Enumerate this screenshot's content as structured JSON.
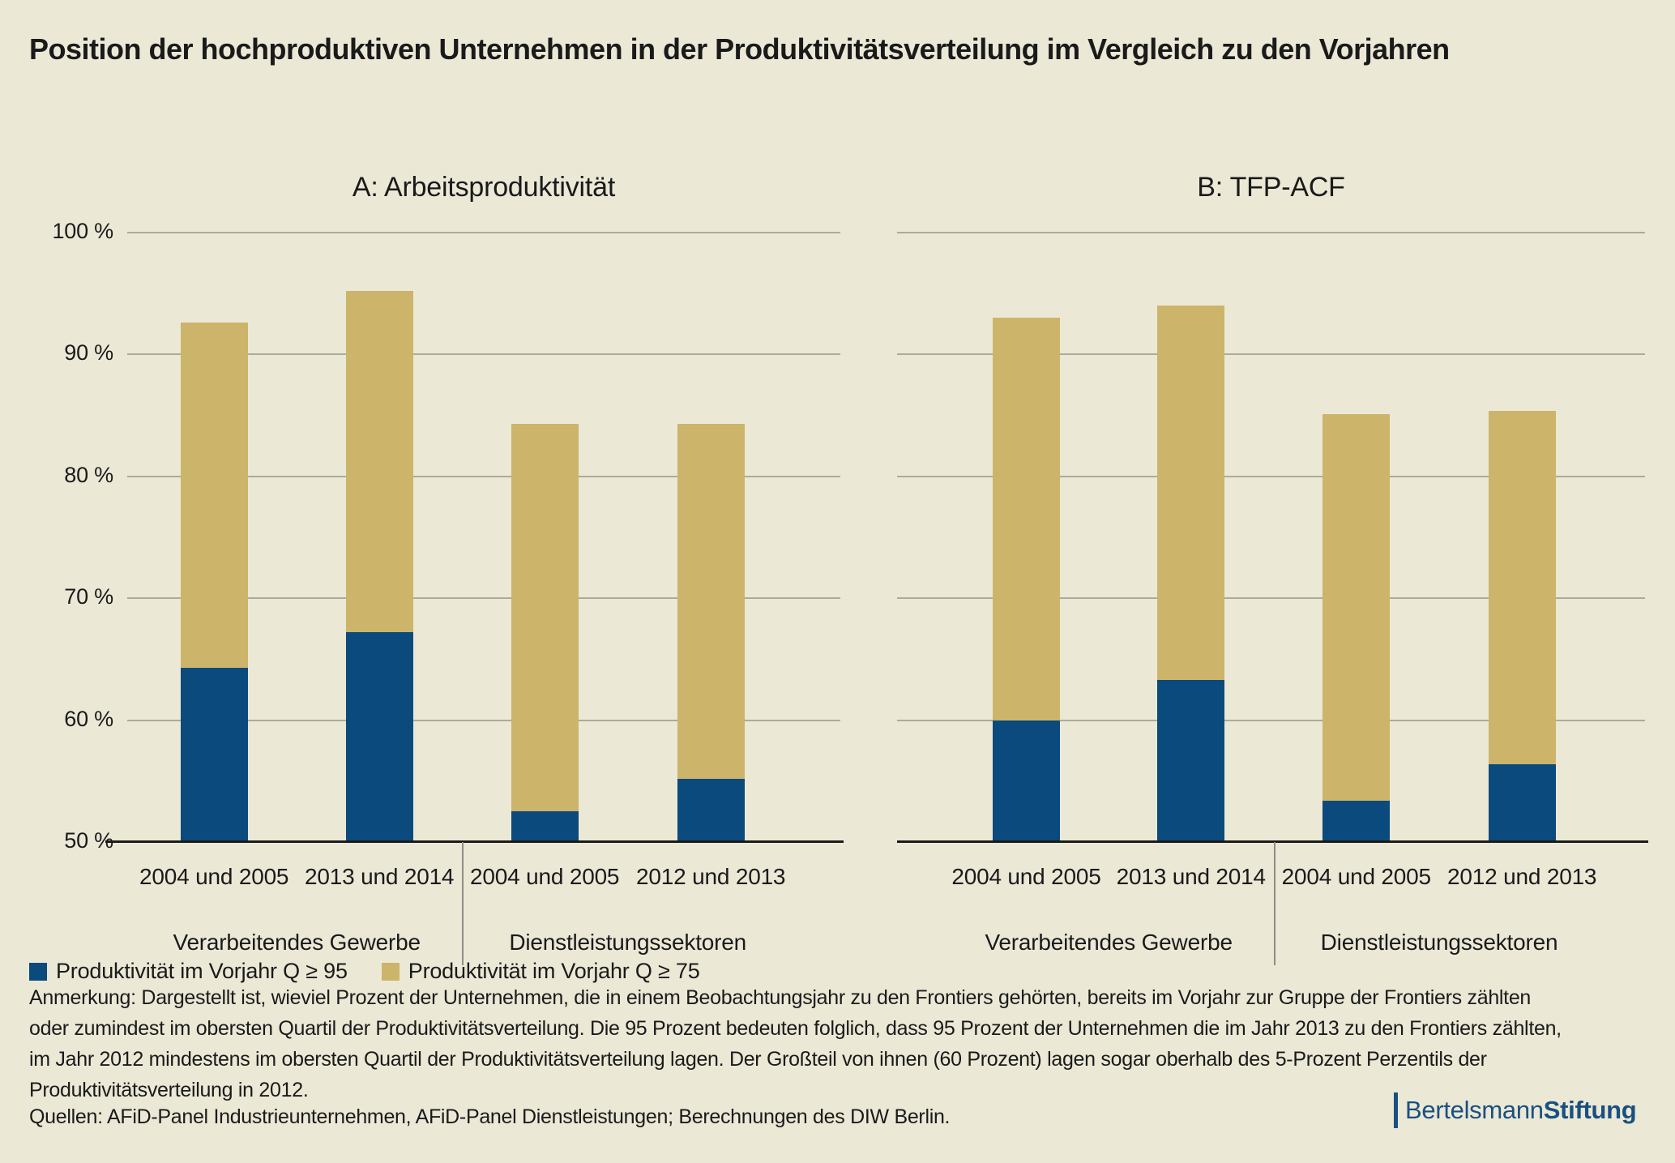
{
  "title": "Position der hochproduktiven Unternehmen in der Produktivitätsverteilung im Vergleich zu den Vorjahren",
  "chart_data": {
    "type": "bar",
    "stacked": true,
    "values_mode": "cumulative_top",
    "y_unit": "%",
    "ylim": [
      50,
      100
    ],
    "grid": true,
    "legend_position": "bottom-left",
    "yticks": [
      {
        "label": "100 %",
        "value": 100
      },
      {
        "label": "90 %",
        "value": 90
      },
      {
        "label": "80 %",
        "value": 80
      },
      {
        "label": "70 %",
        "value": 70
      },
      {
        "label": "60 %",
        "value": 60
      },
      {
        "label": "50 %",
        "value": 50
      }
    ],
    "legend": [
      {
        "label": "Produktivität im Vorjahr Q ≥ 95",
        "color": "#0b4a7d"
      },
      {
        "label": "Produktivität im Vorjahr Q ≥ 75",
        "color": "#ccb56a"
      }
    ],
    "panels": [
      {
        "title": "A: Arbeitsproduktivität",
        "categories": [
          "2004 und 2005",
          "2013 und 2014",
          "2004 und 2005",
          "2012 und 2013"
        ],
        "groups": [
          "Verarbeitendes Gewerbe",
          "Dienstleistungssektoren"
        ],
        "series": [
          {
            "name": "Produktivität im Vorjahr Q ≥ 95",
            "values": [
              64.3,
              67.2,
              52.5,
              55.2
            ]
          },
          {
            "name": "Produktivität im Vorjahr Q ≥ 75",
            "values": [
              92.6,
              95.2,
              84.3,
              84.3
            ]
          }
        ]
      },
      {
        "title": "B: TFP-ACF",
        "categories": [
          "2004 und 2005",
          "2013 und 2014",
          "2004 und 2005",
          "2012 und 2013"
        ],
        "groups": [
          "Verarbeitendes Gewerbe",
          "Dienstleistungssektoren"
        ],
        "series": [
          {
            "name": "Produktivität im Vorjahr Q ≥ 95",
            "values": [
              60.0,
              63.3,
              53.4,
              56.4
            ]
          },
          {
            "name": "Produktivität im Vorjahr Q ≥ 75",
            "values": [
              93.0,
              94.0,
              85.1,
              85.4
            ]
          }
        ]
      }
    ]
  },
  "notes": {
    "lines": [
      "Anmerkung: Dargestellt ist, wieviel Prozent der Unternehmen, die in einem Beobachtungsjahr zu den Frontiers gehörten, bereits im Vorjahr zur Gruppe der Frontiers zählten",
      "oder zumindest im obersten Quartil der Produktivitätsverteilung. Die 95 Prozent bedeuten folglich, dass 95 Prozent der Unternehmen die im Jahr 2013 zu den Frontiers zählten,",
      "im Jahr 2012 mindestens im obersten Quartil der Produktivitätsverteilung lagen. Der Großteil von ihnen (60 Prozent) lagen sogar oberhalb des 5-Prozent Perzentils der",
      "Produktivitätsverteilung in 2012."
    ]
  },
  "sources": "Quellen: AFiD-Panel Industrieunternehmen, AFiD-Panel Dienstleistungen; Berechnungen des DIW Berlin.",
  "brand": {
    "regular": "Bertelsmann",
    "bold": "Stiftung"
  },
  "colors": {
    "background": "#ebe8d6",
    "bar_blue": "#0b4a7d",
    "bar_tan": "#ccb56a",
    "gridline": "#adaa9d",
    "axis": "#1b1b19",
    "text": "#1a1a1a",
    "brand_blue": "#1a5080"
  }
}
